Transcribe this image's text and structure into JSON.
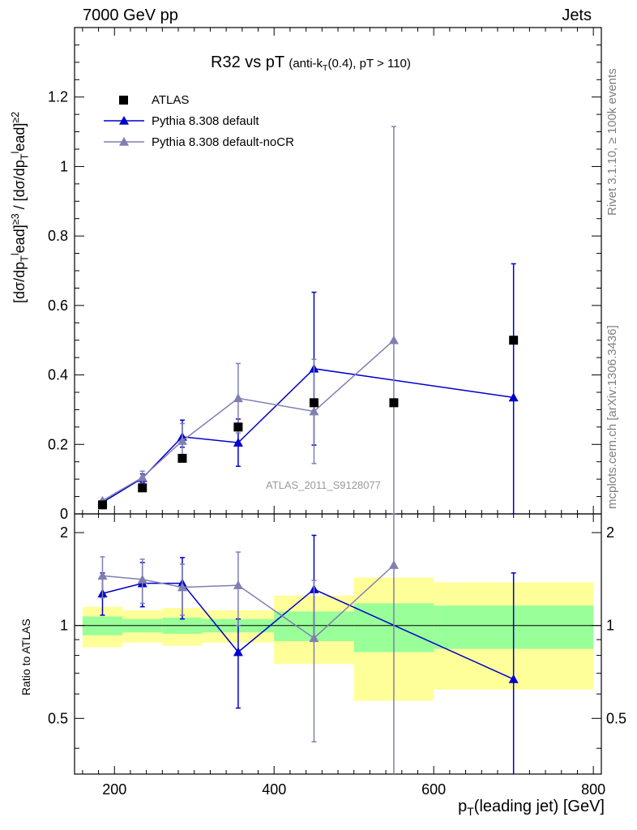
{
  "header": {
    "left": "7000 GeV pp",
    "right": "Jets"
  },
  "side": {
    "rivet": "Rivet 3.1.10, ≥ 100k events",
    "mcplots": "mcplots.cern.ch [arXiv:1306.3436]"
  },
  "watermark": "ATLAS_2011_S9128077",
  "title": {
    "main": "R32 vs pT",
    "sub": "(anti-k_T(0.4), pT > 110)"
  },
  "ylabel_main": "[dσ/dp_Tlead]^≥3 / [dσ/dp_Tlead]^≥2",
  "ylabel_ratio": "Ratio to ATLAS",
  "xlabel": "p_T(leading jet) [GeV]",
  "colors": {
    "data": "#000000",
    "default": "#0000cc",
    "nocr": "#7f7fb2",
    "band_green": "#99ff99",
    "band_yellow": "#ffff99"
  },
  "chart_data": [
    {
      "type": "scatter",
      "panel": "main",
      "xlim": [
        150,
        810
      ],
      "ylim": [
        0,
        1.4
      ],
      "yticks": [
        0,
        0.2,
        0.4,
        0.6,
        0.8,
        1,
        1.2
      ],
      "ytick_labels": [
        "0",
        "0.2",
        "0.4",
        "0.6",
        "0.8",
        "1",
        "1.2"
      ],
      "legend_position": "top-left",
      "series": [
        {
          "name": "ATLAS",
          "style": "square",
          "x": [
            185,
            235,
            285,
            355,
            450,
            550,
            700
          ],
          "y": [
            0.026,
            0.075,
            0.16,
            0.25,
            0.32,
            0.32,
            0.5
          ]
        },
        {
          "name": "Pythia 8.308 default",
          "style": "line-triangle",
          "x": [
            185,
            235,
            285,
            355,
            450,
            700
          ],
          "y": [
            0.033,
            0.103,
            0.222,
            0.205,
            0.418,
            0.335
          ],
          "err_lo": [
            0.004,
            0.012,
            0.03,
            0.068,
            0.22,
            0.335
          ],
          "err_hi": [
            0.004,
            0.012,
            0.048,
            0.068,
            0.22,
            0.385
          ]
        },
        {
          "name": "Pythia 8.308 default-noCR",
          "style": "line-triangle",
          "x": [
            185,
            235,
            285,
            355,
            450,
            550
          ],
          "y": [
            0.038,
            0.105,
            0.21,
            0.333,
            0.295,
            0.5
          ],
          "err_lo": [
            0.004,
            0.018,
            0.05,
            0.1,
            0.15,
            0.5
          ],
          "err_hi": [
            0.004,
            0.018,
            0.05,
            0.1,
            0.15,
            0.615
          ]
        }
      ]
    },
    {
      "type": "scatter",
      "panel": "ratio",
      "xlim": [
        150,
        810
      ],
      "ylim": [
        0.33,
        2.3
      ],
      "yscale": "log",
      "yticks": [
        0.5,
        1,
        2
      ],
      "ytick_labels": [
        "0.5",
        "1",
        "2"
      ],
      "xticks": [
        200,
        400,
        600,
        800
      ],
      "xtick_labels": [
        "200",
        "400",
        "600",
        "800"
      ],
      "bands": {
        "edges": [
          160,
          210,
          260,
          310,
          400,
          500,
          600,
          800
        ],
        "green_lo": [
          0.93,
          0.95,
          0.94,
          0.95,
          0.89,
          0.82,
          0.84
        ],
        "green_hi": [
          1.07,
          1.05,
          1.06,
          1.05,
          1.11,
          1.18,
          1.16
        ],
        "yellow_lo": [
          0.85,
          0.88,
          0.86,
          0.88,
          0.75,
          0.57,
          0.62
        ],
        "yellow_hi": [
          1.15,
          1.12,
          1.14,
          1.12,
          1.25,
          1.43,
          1.38
        ]
      },
      "series": [
        {
          "name": "Pythia 8.308 default",
          "x": [
            185,
            235,
            285,
            355,
            450,
            700
          ],
          "y": [
            1.27,
            1.37,
            1.37,
            0.82,
            1.31,
            0.67
          ],
          "err_lo": [
            1.08,
            1.15,
            1.05,
            0.54,
            0.91,
            0.3
          ],
          "err_hi": [
            1.48,
            1.6,
            1.66,
            1.05,
            1.96,
            1.48
          ]
        },
        {
          "name": "Pythia 8.308 default-noCR",
          "x": [
            185,
            235,
            285,
            355,
            450,
            550
          ],
          "y": [
            1.45,
            1.41,
            1.33,
            1.35,
            0.91,
            1.57
          ],
          "err_lo": [
            1.23,
            1.18,
            1.08,
            1.0,
            0.42,
            0.3
          ],
          "err_hi": [
            1.67,
            1.64,
            1.58,
            1.73,
            1.4,
            3.5
          ]
        }
      ]
    }
  ]
}
